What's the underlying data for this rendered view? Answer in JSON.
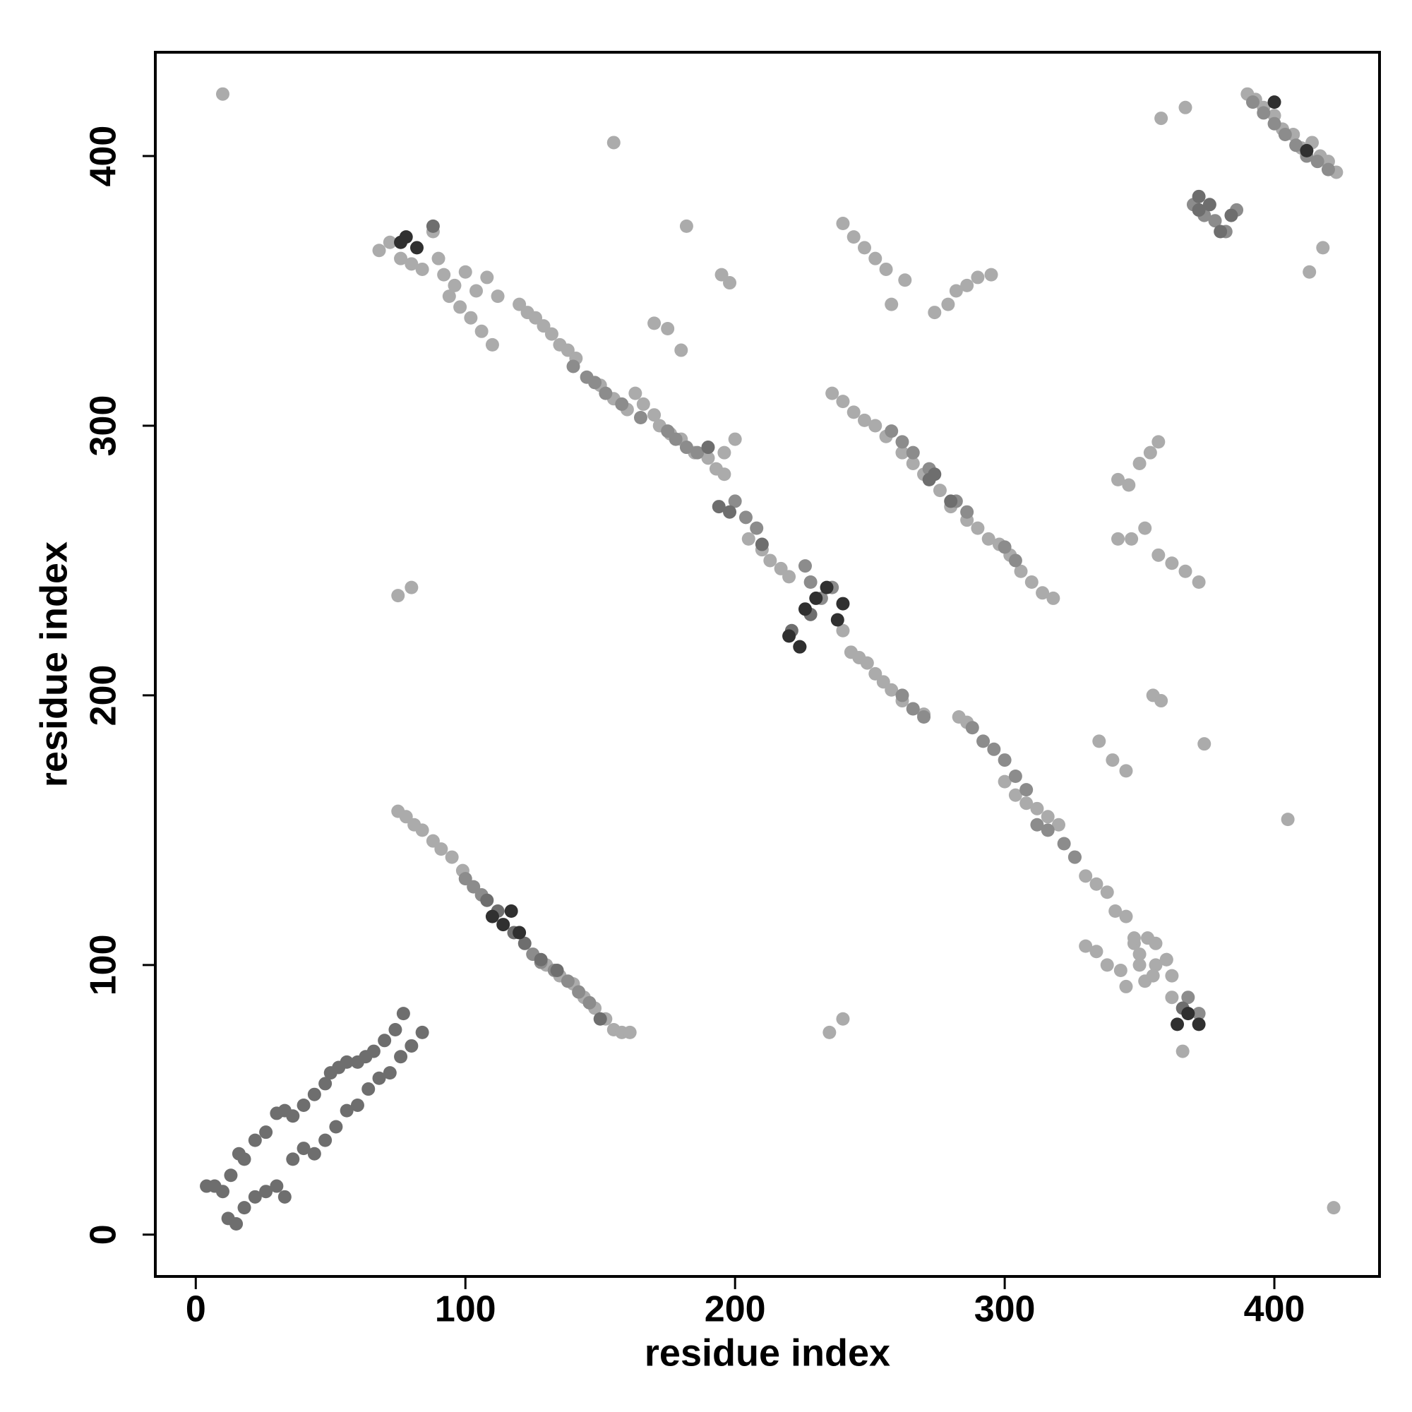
{
  "chart_data": {
    "type": "scatter",
    "xlabel": "residue index",
    "ylabel": "residue index",
    "xlim": [
      -15,
      439
    ],
    "ylim": [
      -15.5,
      438.5
    ],
    "xticks": [
      0,
      100,
      200,
      300,
      400
    ],
    "yticks": [
      0,
      100,
      200,
      300,
      400
    ],
    "grid": false,
    "series": [
      {
        "color": "#ababab",
        "x": [
          120,
          123,
          126,
          129,
          132,
          135,
          138,
          141,
          150,
          155,
          160,
          163,
          166,
          170,
          172,
          176,
          180,
          185,
          190,
          193,
          196,
          205,
          210,
          213,
          217,
          220,
          240,
          243,
          246,
          249,
          252,
          255,
          258,
          262,
          266,
          270,
          283,
          286,
          300,
          304,
          308,
          312,
          316,
          320,
          326,
          330,
          334,
          338,
          341,
          345,
          348,
          350,
          353,
          356,
          360,
          362
        ],
        "values": [
          345,
          342,
          340,
          337,
          334,
          330,
          328,
          325,
          315,
          310,
          306,
          312,
          308,
          304,
          300,
          297,
          295,
          290,
          288,
          284,
          282,
          258,
          254,
          250,
          247,
          244,
          224,
          216,
          214,
          212,
          208,
          205,
          202,
          198,
          195,
          193,
          192,
          190,
          168,
          163,
          160,
          158,
          155,
          152,
          140,
          133,
          130,
          127,
          120,
          118,
          108,
          104,
          110,
          100,
          102,
          96
        ]
      },
      {
        "color": "#ababab",
        "x": [
          10,
          155,
          182,
          195,
          198,
          170,
          175,
          180,
          240,
          244,
          248,
          252,
          256,
          258,
          263,
          274,
          279,
          282,
          286,
          290,
          295,
          75,
          80,
          235,
          240,
          335,
          340,
          345,
          355,
          358,
          374,
          405,
          422,
          358,
          367,
          418,
          413,
          342,
          346,
          350,
          354,
          357,
          342,
          347,
          352,
          357,
          362,
          367,
          372,
          200,
          196
        ],
        "values": [
          423,
          405,
          374,
          356,
          353,
          338,
          336,
          328,
          375,
          370,
          366,
          362,
          358,
          345,
          354,
          342,
          345,
          350,
          352,
          355,
          356,
          237,
          240,
          75,
          80,
          183,
          176,
          172,
          200,
          198,
          182,
          154,
          10,
          414,
          418,
          366,
          357,
          280,
          278,
          286,
          290,
          294,
          258,
          258,
          262,
          252,
          249,
          246,
          242,
          295,
          290
        ]
      },
      {
        "color": "#ababab",
        "x": [
          236,
          240,
          244,
          248,
          252,
          256,
          262,
          266,
          270,
          276,
          280,
          286,
          290,
          294,
          298,
          302,
          306,
          310,
          314,
          318
        ],
        "values": [
          312,
          309,
          305,
          302,
          300,
          296,
          290,
          286,
          282,
          276,
          270,
          265,
          262,
          258,
          256,
          252,
          246,
          242,
          238,
          236
        ]
      },
      {
        "color": "#ababab",
        "x": [
          75,
          78,
          81,
          84,
          88,
          91,
          95,
          99,
          130,
          135,
          140,
          144,
          148,
          152,
          155,
          158,
          161
        ],
        "values": [
          157,
          155,
          152,
          150,
          146,
          143,
          140,
          135,
          100,
          96,
          93,
          88,
          84,
          80,
          76,
          75,
          75
        ]
      },
      {
        "color": "#ababab",
        "x": [
          68,
          72,
          76,
          80,
          84,
          88,
          90,
          92,
          94,
          96,
          98,
          100,
          102,
          104,
          106,
          108,
          110,
          112
        ],
        "values": [
          365,
          368,
          362,
          360,
          358,
          372,
          362,
          356,
          348,
          352,
          344,
          357,
          340,
          350,
          335,
          355,
          330,
          348
        ]
      },
      {
        "color": "#ababab",
        "x": [
          390,
          393,
          396,
          400,
          403,
          407,
          410,
          414,
          417,
          420,
          423,
          330,
          334,
          338,
          343,
          348,
          352,
          356,
          362,
          366,
          345,
          350,
          355,
          360
        ],
        "values": [
          423,
          421,
          418,
          415,
          410,
          408,
          403,
          405,
          400,
          398,
          394,
          107,
          105,
          100,
          98,
          110,
          94,
          108,
          88,
          68,
          92,
          100,
          96,
          102
        ]
      },
      {
        "color": "#8c8c8c",
        "x": [
          140,
          145,
          148,
          152,
          158,
          165,
          175,
          178,
          182,
          186,
          200,
          204,
          208,
          226,
          228,
          232,
          236,
          262,
          266,
          270,
          288,
          292,
          296,
          300,
          304,
          308,
          312,
          316,
          322,
          326
        ],
        "values": [
          322,
          318,
          316,
          312,
          308,
          303,
          298,
          295,
          292,
          290,
          272,
          266,
          262,
          248,
          242,
          236,
          240,
          200,
          195,
          192,
          188,
          183,
          180,
          176,
          170,
          165,
          152,
          150,
          145,
          140
        ]
      },
      {
        "color": "#8c8c8c",
        "x": [
          100,
          103,
          106,
          125,
          128,
          133,
          138,
          142,
          146,
          258,
          262,
          266,
          272,
          282,
          286,
          300,
          304,
          392,
          396,
          400,
          404,
          408,
          412,
          416,
          420,
          370,
          374,
          378,
          382,
          386,
          368,
          372
        ],
        "values": [
          132,
          129,
          126,
          104,
          101,
          98,
          94,
          90,
          86,
          298,
          294,
          290,
          284,
          272,
          268,
          255,
          250,
          420,
          416,
          412,
          408,
          404,
          400,
          398,
          395,
          382,
          378,
          376,
          372,
          380,
          88,
          82
        ]
      },
      {
        "color": "#6e6e6e",
        "x": [
          4,
          7,
          10,
          13,
          16,
          18,
          22,
          26,
          30,
          33,
          36,
          40,
          44,
          48,
          50,
          53,
          56,
          60,
          63,
          66,
          70,
          74,
          77,
          12,
          15,
          18,
          22,
          26,
          30,
          33,
          36,
          40,
          44,
          48,
          52,
          56,
          60,
          64,
          68,
          72,
          76,
          80,
          84
        ],
        "values": [
          18,
          18,
          16,
          22,
          30,
          28,
          35,
          38,
          45,
          46,
          44,
          48,
          52,
          56,
          60,
          62,
          64,
          64,
          66,
          68,
          72,
          76,
          82,
          6,
          4,
          10,
          14,
          16,
          18,
          14,
          28,
          32,
          30,
          35,
          40,
          46,
          48,
          54,
          58,
          60,
          66,
          70,
          75
        ]
      },
      {
        "color": "#6e6e6e",
        "x": [
          108,
          112,
          118,
          122,
          128,
          134,
          150,
          190,
          194,
          198,
          210,
          221,
          224,
          228,
          272,
          274,
          280,
          372,
          376,
          380,
          384,
          372,
          366,
          88
        ],
        "values": [
          124,
          120,
          112,
          108,
          102,
          98,
          80,
          292,
          270,
          268,
          256,
          224,
          218,
          230,
          280,
          282,
          272,
          385,
          382,
          372,
          378,
          380,
          84,
          374
        ]
      },
      {
        "color": "#303030",
        "x": [
          110,
          114,
          117,
          120,
          78,
          82,
          76,
          226,
          230,
          234,
          238,
          240,
          220,
          224,
          368,
          372,
          364,
          400,
          412
        ],
        "values": [
          118,
          115,
          120,
          112,
          370,
          366,
          368,
          232,
          236,
          240,
          228,
          234,
          222,
          218,
          82,
          78,
          78,
          420,
          402
        ]
      }
    ]
  }
}
